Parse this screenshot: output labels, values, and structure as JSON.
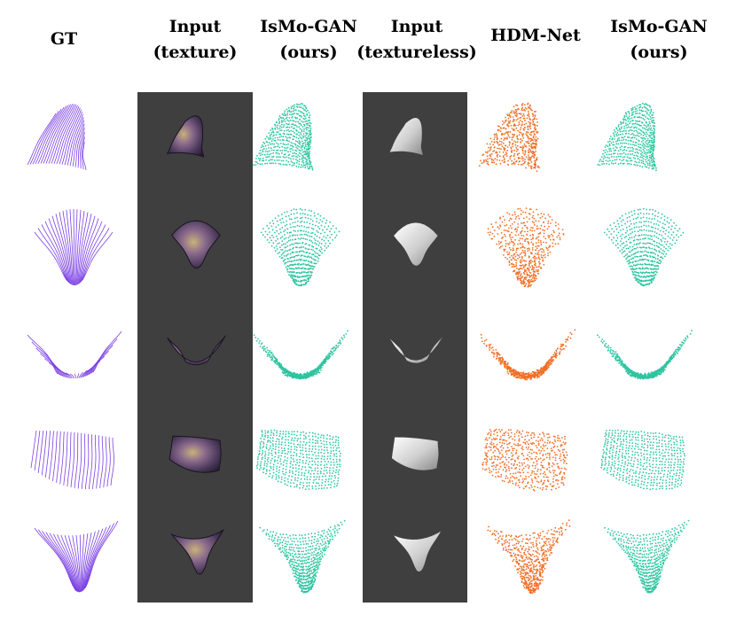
{
  "headers": [
    {
      "lines": [
        "GT"
      ]
    },
    {
      "lines": [
        "Input",
        "(texture)"
      ]
    },
    {
      "lines": [
        "IsMo-GAN",
        "(ours)"
      ]
    },
    {
      "lines": [
        "Input",
        "(textureless)"
      ]
    },
    {
      "lines": [
        "HDM-Net"
      ]
    },
    {
      "lines": [
        "IsMo-GAN",
        "(ours)"
      ]
    }
  ],
  "colors": {
    "gt": "#7b3fe4",
    "ours": "#2ec4a0",
    "hdm": "#f07028",
    "panel": "#3f3f3f"
  },
  "rows": [
    "row-1",
    "row-2",
    "row-3",
    "row-4",
    "row-5"
  ]
}
